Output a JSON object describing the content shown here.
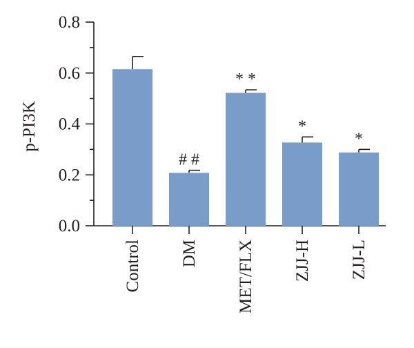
{
  "chart_data": {
    "type": "bar",
    "title": "",
    "xlabel": "",
    "ylabel": "p-PI3K",
    "ylim": [
      0,
      0.8
    ],
    "yticks": [
      "0.0",
      "0.2",
      "0.4",
      "0.6",
      "0.8"
    ],
    "categories": [
      "Control",
      "DM",
      "MET/FLX",
      "ZJJ-H",
      "ZJJ-L"
    ],
    "values": [
      0.615,
      0.208,
      0.522,
      0.327,
      0.288
    ],
    "errors": [
      0.05,
      0.01,
      0.012,
      0.022,
      0.012
    ],
    "annotations": [
      "",
      "##",
      "**",
      "*",
      "*"
    ],
    "bar_color": "#7a9cc9",
    "grid": false,
    "legend": "none"
  }
}
